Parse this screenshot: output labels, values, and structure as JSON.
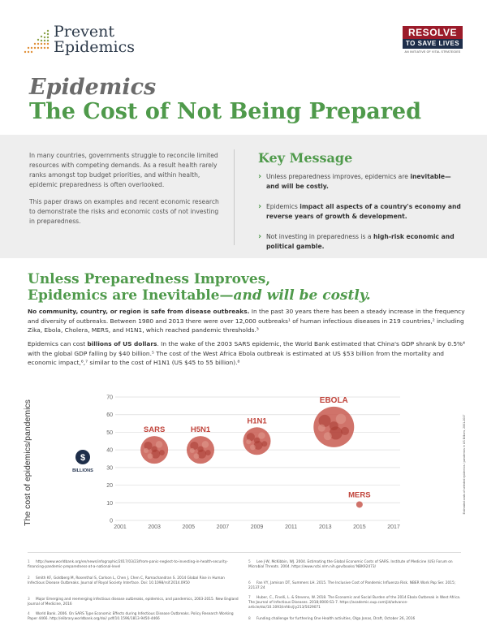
{
  "header": {
    "logo_line1": "Prevent",
    "logo_line2": "Epidemics",
    "badge_top": "RESOLVE",
    "badge_bottom": "TO SAVE LIVES",
    "badge_sub": "AN INITIATIVE OF VITAL STRATEGIES"
  },
  "title": {
    "line1": "Epidemics",
    "line2": "The Cost of Not Being Prepared"
  },
  "intro": {
    "p1": "In many countries, governments struggle to reconcile limited resources with competing demands. As a result health rarely ranks amongst top budget priorities, and within health, epidemic preparedness is often overlooked.",
    "p2": "This paper draws on examples and recent economic research to demonstrate the risks and economic costs of not investing in preparedness."
  },
  "key_message": {
    "title": "Key Message",
    "items": [
      {
        "pre": "Unless preparedness improves, epidemics are ",
        "bold": "inevitable—and will be costly.",
        "post": ""
      },
      {
        "pre": "Epidemics ",
        "bold": "impact all aspects of a country's economy and reverse years of growth & development.",
        "post": ""
      },
      {
        "pre": "Not investing in preparedness is a ",
        "bold": "high-risk economic and political gamble.",
        "post": ""
      }
    ]
  },
  "section": {
    "heading_line1": "Unless Preparedness Improves,",
    "heading_line2_pre": "Epidemics are Inevitable—",
    "heading_line2_em": "and will be costly.",
    "p1_bold": "No community, country, or region is safe from disease outbreaks.",
    "p1_rest": " In the past 30 years there has been a steady increase in the frequency and diversity of outbreaks. Between 1980 and 2013 there were over 12,000 outbreaks¹ of human infectious diseases in 219 countries,² including Zika, Ebola, Cholera, MERS, and H1N1, which reached pandemic thresholds.³",
    "p2_pre": "Epidemics can cost ",
    "p2_bold": "billions of US dollars",
    "p2_rest": ". In the wake of the 2003 SARS epidemic, the World Bank estimated that China's GDP shrank by 0.5%⁴ with the global GDP falling by $40 billion.⁵ The cost of the West Africa Ebola outbreak is estimated at US $53 billion from the mortality and economic impact,⁶,⁷ similar to the cost of H1N1 (US $45 to 55 billion).⁸"
  },
  "chart_labels": {
    "ylabel": "The cost of epidemics/pandemics",
    "currency_symbol": "$",
    "units": "BILLIONS",
    "side_note": "Estimated costs of selected epidemics / pandemics in US Billions, 2001-2017"
  },
  "chart_data": {
    "type": "scatter",
    "x_ticks": [
      "2001",
      "2003",
      "2005",
      "2007",
      "2009",
      "2011",
      "2013",
      "2015",
      "2017"
    ],
    "y_ticks": [
      "0",
      "10",
      "20",
      "30",
      "40",
      "50",
      "60",
      "70"
    ],
    "xlim": [
      2001,
      2017
    ],
    "ylim": [
      0,
      70
    ],
    "grid": true,
    "points": [
      {
        "label": "SARS",
        "x": 2003,
        "y": 40,
        "size": "large"
      },
      {
        "label": "H5N1",
        "x": 2005.7,
        "y": 40,
        "size": "large"
      },
      {
        "label": "H1N1",
        "x": 2009,
        "y": 45,
        "size": "large"
      },
      {
        "label": "EBOLA",
        "x": 2013.5,
        "y": 53,
        "size": "xlarge"
      },
      {
        "label": "MERS",
        "x": 2015,
        "y": 9,
        "size": "small"
      }
    ],
    "colors": {
      "bubble": "#c85a50",
      "label": "#c0443b",
      "grid": "#dcdcdc"
    }
  },
  "footnotes": [
    {
      "n": "1",
      "text": "http://www.worldbank.org/en/news/infographic/2017/03/23/from-panic-neglect-to-investing-in-health-security-financing-pandemic-preparedness-at-a-national-level"
    },
    {
      "n": "2",
      "text": "Smith KF, Goldberg M, Rosenthal S, Carlson L, Chen J, Chen C, Ramachandran S. 2014 Global Rise in Human Infectious Disease Outbreaks. Journal of Royal Society Interface. Doi: 10.1098/rsif.2014.0950"
    },
    {
      "n": "3",
      "text": "Major Emerging and reemerging infectious disease outbreaks, epidemics, and pandemics, 2003-2015. New England Journal of Medicine, 2016"
    },
    {
      "n": "4",
      "text": "World Bank. 2006. On SARS Type Economic Effects during Infectious Disease Outbreaks. Policy Research Working Paper 4466. http://elibrary.worldbank.org/doi/ pdf/10.1596/1813-9450-4466"
    },
    {
      "n": "5",
      "text": "Lee J-W, McKibbin, WJ. 2004. Estimating the Global Economic Costs of SARS. Institute of Medicine (US) Forum on Microbial Threats. 2004. https://www.ncbi.nlm.nih.gov/books/ NBK92473/"
    },
    {
      "n": "6",
      "text": "Fan VY, Jamison DT, Summers LH. 2015. The Inclusive Cost of Pandemic Influenza Risk. NBER Work Pap Ser. 2015; 22137:24"
    },
    {
      "n": "7",
      "text": "Huber, C., Finelli, L. & Stevens, W. 2018. The Economic and Social Burden of the 2014 Ebola Outbreak in West Africa. The Journal of Infectious Diseases. 2018;0000:S1-7. https://academic.oup.com/jid/advance-article/doi/10.1093/infdis/jiy213/5029071"
    },
    {
      "n": "8",
      "text": "Funding challenge for furthering One Health activities, Olga Jonas, Draft, October 26, 2016"
    }
  ]
}
